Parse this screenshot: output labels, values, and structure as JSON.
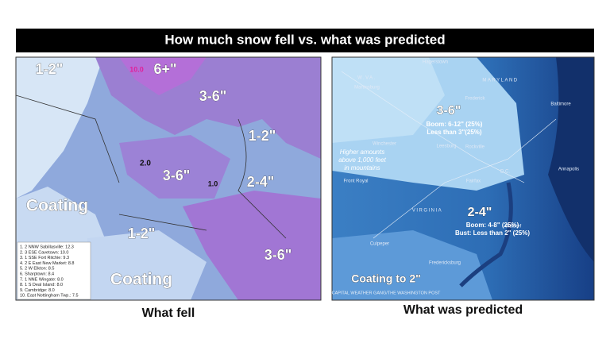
{
  "title": "How much snow fell vs. what was predicted",
  "left_map": {
    "caption": "What fell",
    "labels": [
      "1-2\"",
      "10.0",
      "6+\"",
      "3-6\"",
      "1-2\"",
      "2.0",
      "3-6\"",
      "1.0",
      "2-4\"",
      "Coating",
      "1-2\"",
      "Coating",
      "3-6\""
    ],
    "station_list": [
      "1. 2 NNW Sabillasville: 12.3",
      "2. 3 ESE Cavetown: 10.0",
      "3. 1 SSE Fort Ritchie: 9.3",
      "4. 2 E East New Market: 8.8",
      "5. 2 W Elkton: 8.5",
      "6. Sharptown: 8.4",
      "7. 1 NNE Wingate: 8.0",
      "8. 1 S Deal Island: 8.0",
      "9. Cambridge: 8.0",
      "10. East Nottingham Twp.: 7.5"
    ]
  },
  "right_map": {
    "caption": "What was predicted",
    "places": [
      "Hagerstown",
      "W.VA.",
      "MARYLAND",
      "Martinsburg",
      "Frederick",
      "Baltimore",
      "Winchester",
      "Leesburg",
      "Rockville",
      "Front Royal",
      "Fairfax",
      "D.C.",
      "Annapolis",
      "VIRGINIA",
      "Culpeper",
      "Waldorf",
      "Fredericksburg"
    ],
    "zone_north": {
      "amount": "3-6\"",
      "boom": "Boom: 6-12\" (25%)",
      "bust": "Less than 3\"(25%)"
    },
    "mountain_note": [
      "Higher amounts",
      "above 1,000 feet",
      "in mountains"
    ],
    "zone_south": {
      "amount": "2-4\"",
      "boom": "Boom: 4-8\" (25%)",
      "bust": "Bust: Less than 2\" (25%)"
    },
    "zone_low": "Coating to 2\"",
    "credit": "CAPITAL WEATHER GANG/THE WASHINGTON POST"
  }
}
